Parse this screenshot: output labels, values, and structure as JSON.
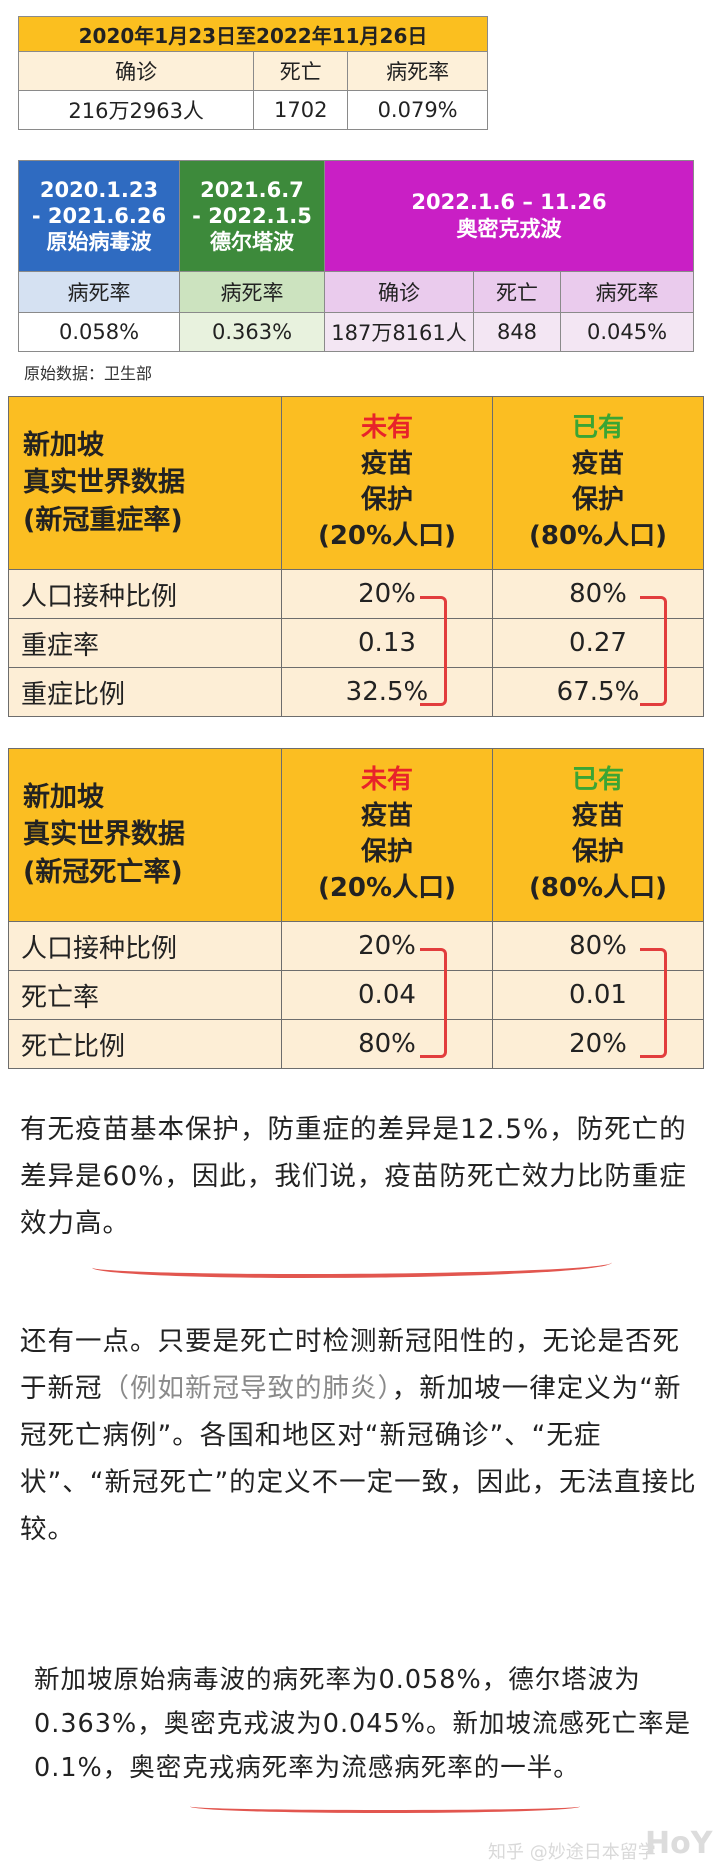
{
  "table1": {
    "title": "2020年1月23日至2022年11月26日",
    "headers": [
      "确诊",
      "死亡",
      "病死率"
    ],
    "values": [
      "216万2963人",
      "1702",
      "0.079%"
    ]
  },
  "table2": {
    "wave1": {
      "line1": "2020.1.23",
      "line2": "- 2021.6.26",
      "line3": "原始病毒波",
      "rate_label": "病死率",
      "rate": "0.058%"
    },
    "wave2": {
      "line1": "2021.6.7",
      "line2": "- 2022.1.5",
      "line3": "德尔塔波",
      "rate_label": "病死率",
      "rate": "0.363%"
    },
    "wave3": {
      "line1": "2022.1.6 – 11.26",
      "line2": "奥密克戎波",
      "headers": [
        "确诊",
        "死亡",
        "病死率"
      ],
      "values": [
        "187万8161人",
        "848",
        "0.045%"
      ]
    }
  },
  "source_note": "原始数据：卫生部",
  "severe_table": {
    "title_lines": [
      "新加坡",
      "真实世界数据",
      "(新冠重症率)"
    ],
    "col1": {
      "status": "未有",
      "lines": [
        "疫苗",
        "保护",
        "(20%人口)"
      ]
    },
    "col2": {
      "status": "已有",
      "lines": [
        "疫苗",
        "保护",
        "(80%人口)"
      ]
    },
    "rows": [
      {
        "label": "人口接种比例",
        "a": "20%",
        "b": "80%"
      },
      {
        "label": "重症率",
        "a": "0.13",
        "b": "0.27"
      },
      {
        "label": "重症比例",
        "a": "32.5%",
        "b": "67.5%"
      }
    ]
  },
  "death_table": {
    "title_lines": [
      "新加坡",
      "真实世界数据",
      "(新冠死亡率)"
    ],
    "col1": {
      "status": "未有",
      "lines": [
        "疫苗",
        "保护",
        "(20%人口)"
      ]
    },
    "col2": {
      "status": "已有",
      "lines": [
        "疫苗",
        "保护",
        "(80%人口)"
      ]
    },
    "rows": [
      {
        "label": "人口接种比例",
        "a": "20%",
        "b": "80%"
      },
      {
        "label": "死亡率",
        "a": "0.04",
        "b": "0.01"
      },
      {
        "label": "死亡比例",
        "a": "80%",
        "b": "20%"
      }
    ]
  },
  "para1": {
    "text": "有无疫苗基本保护，防重症的差异是12.5%，防死亡的差异是60%，因此，我们说，",
    "highlight": "疫苗防死亡效力比防重症效力高。"
  },
  "para2": {
    "part1": "还有一点。只要是死亡时检测新冠阳性的，无论是否死于新冠",
    "gray": "（例如新冠导致的肺炎）",
    "part2": "，新加坡一律定义为“新冠死亡病例”。各国和地区对“新冠确诊”、“无症状”、“新冠死亡”的定义不一定一致，因此，无法直接比较。"
  },
  "para3": {
    "text": "新加坡原始病毒波的病死率为0.058%，德尔塔波为0.363%，奥密克戎波为0.045%。新加坡流感死亡率是0.1%，奥密克戎病死率为流感病死率的一半。"
  },
  "watermark": {
    "text": "知乎 @妙途日本留学",
    "logo": "HoYP"
  },
  "colors": {
    "orange": "#fbbe22",
    "blue": "#2f6bc1",
    "green": "#3d8a3b",
    "magenta": "#c91fc5",
    "red": "#e8232a"
  }
}
